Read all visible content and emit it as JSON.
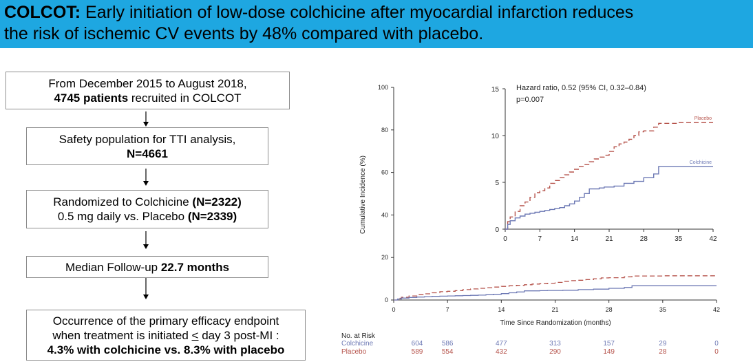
{
  "banner": {
    "study_name": "COLCOT:",
    "line1_rest": " Early initiation of low-dose colchicine after myocardial infarction reduces",
    "line2": "the risk of ischemic CV events by 48% compared with placebo."
  },
  "flow": {
    "box1": {
      "line1": "From December 2015 to August 2018,",
      "bold": "4745 patients",
      "rest": " recruited in COLCOT"
    },
    "box2": {
      "line1": "Safety population for TTI analysis,",
      "bold": "N=4661"
    },
    "box3": {
      "line1_text": "Randomized to Colchicine ",
      "line1_bold": "(N=2322)",
      "line2_text": "0.5 mg daily vs. Placebo ",
      "line2_bold": "(N=2339)"
    },
    "box4": {
      "text": "Median Follow-up ",
      "bold": "22.7 months"
    },
    "box5": {
      "line1": "Occurrence of the primary efficacy endpoint",
      "line2_pre": "when treatment is initiated ",
      "line2_sym": "<",
      "line2_post": " day 3 post-MI :",
      "bold": "4.3% with colchicine vs. 8.3% with placebo"
    }
  },
  "chart_data": {
    "type": "line",
    "xlabel": "Time Since Randomization (months)",
    "ylabel": "Cumulative Incidence (%)",
    "xlim": [
      0,
      42
    ],
    "ylim": [
      0,
      100
    ],
    "xticks": [
      0,
      7,
      14,
      21,
      28,
      35,
      42
    ],
    "yticks": [
      0,
      20,
      40,
      60,
      80,
      100
    ],
    "series": [
      {
        "name": "Placebo",
        "color": "#b5524a",
        "dash": true,
        "x": [
          0,
          0.5,
          1,
          2,
          3,
          4,
          5,
          6,
          7,
          8,
          9,
          10,
          11,
          12,
          13,
          14,
          15,
          16,
          17,
          18,
          19,
          20,
          21,
          22,
          23,
          24,
          25,
          26,
          27,
          28,
          29,
          30,
          31,
          35,
          42
        ],
        "y": [
          0,
          0.8,
          1.3,
          1.9,
          2.5,
          2.9,
          3.4,
          3.9,
          4.1,
          4.4,
          4.9,
          5.2,
          5.5,
          5.8,
          6.1,
          6.4,
          6.7,
          6.9,
          7.2,
          7.5,
          7.7,
          7.9,
          8.3,
          8.8,
          9.1,
          9.3,
          9.6,
          10.0,
          10.4,
          10.5,
          10.5,
          10.9,
          11.3,
          11.4,
          11.4
        ]
      },
      {
        "name": "Colchicine",
        "color": "#6c78b4",
        "dash": false,
        "x": [
          0,
          0.5,
          1,
          2,
          3,
          4,
          5,
          6,
          7,
          8,
          9,
          10,
          11,
          12,
          13,
          14,
          15,
          16,
          17,
          18,
          19,
          20,
          21,
          22,
          24,
          26,
          28,
          30,
          31,
          35,
          42
        ],
        "y": [
          0,
          0.5,
          0.9,
          1.2,
          1.4,
          1.6,
          1.7,
          1.8,
          1.9,
          2.0,
          2.1,
          2.2,
          2.3,
          2.5,
          2.7,
          3.0,
          3.4,
          3.8,
          4.3,
          4.3,
          4.4,
          4.5,
          4.5,
          4.6,
          4.9,
          5.1,
          5.5,
          5.9,
          6.7,
          6.7,
          6.7
        ]
      }
    ],
    "inset": {
      "xlim": [
        0,
        42
      ],
      "ylim": [
        0,
        15
      ],
      "xticks": [
        0,
        7,
        14,
        21,
        28,
        35,
        42
      ],
      "yticks": [
        0,
        5,
        10,
        15
      ],
      "hr_line": "Hazard ratio, 0.52 (95% CI, 0.32–0.84)",
      "p_line": "p=0.007"
    },
    "risk_table": {
      "title": "No. at Risk",
      "rows": [
        {
          "name": "Colchicine",
          "color": "#6c78b4",
          "values": [
            "604",
            "586",
            "477",
            "313",
            "157",
            "29",
            "0"
          ]
        },
        {
          "name": "Placebo",
          "color": "#b5524a",
          "values": [
            "589",
            "554",
            "432",
            "290",
            "149",
            "28",
            "0"
          ]
        }
      ]
    }
  }
}
